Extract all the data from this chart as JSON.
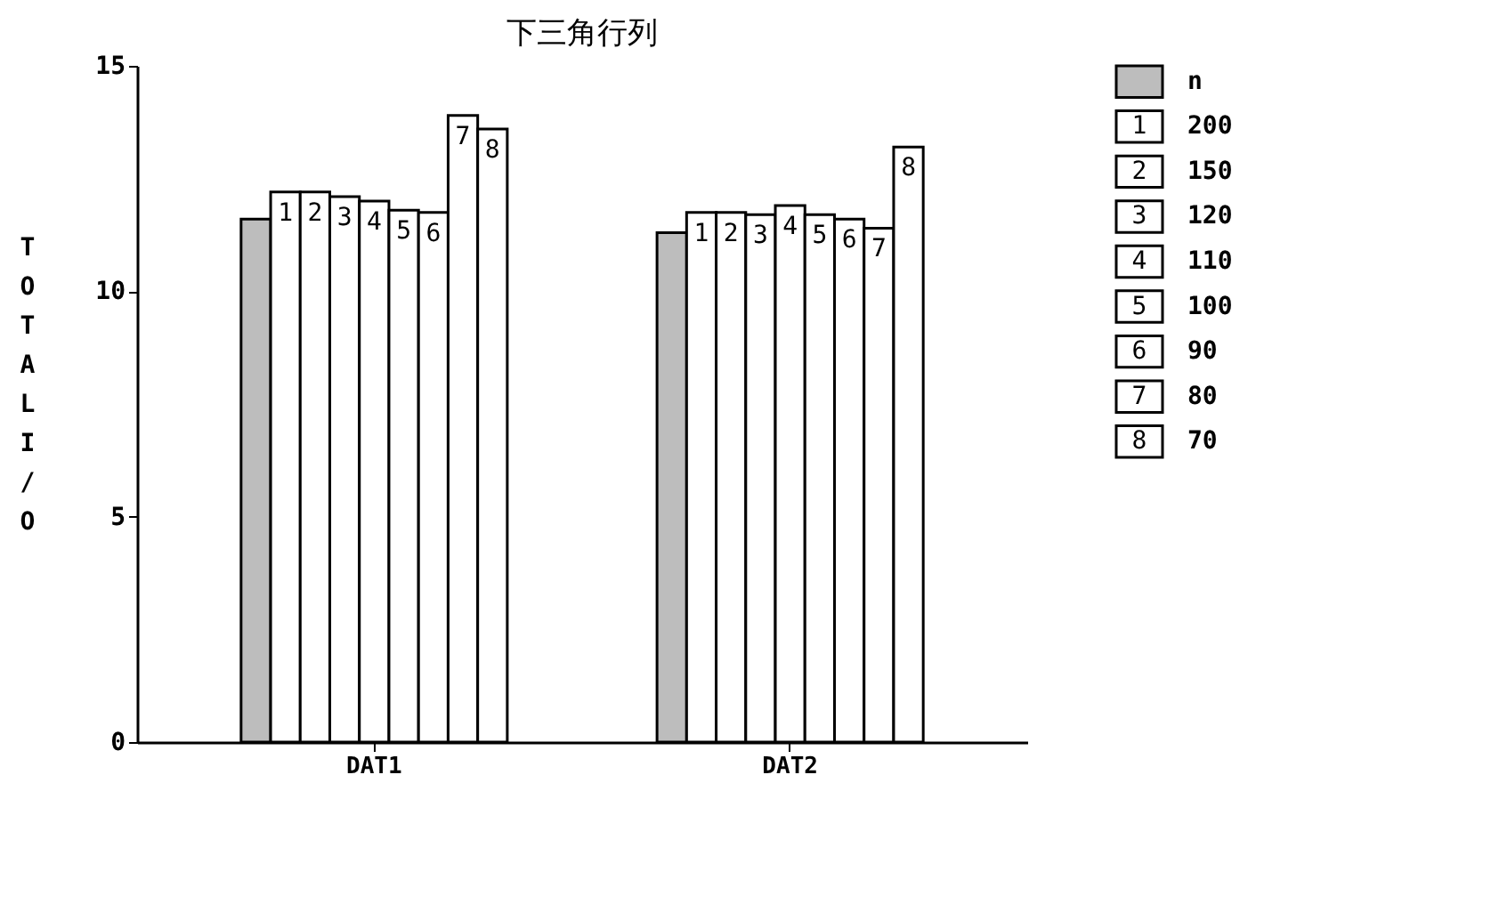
{
  "chart_data": {
    "type": "bar",
    "title": "下三角行列",
    "ylabel": "TOTAL I/O",
    "categories": [
      "DAT1",
      "DAT2"
    ],
    "series": [
      {
        "name": "n",
        "color": "#bdbdbd",
        "values": [
          11.6,
          11.3
        ]
      },
      {
        "name": "200",
        "color": "#ffffff",
        "values": [
          12.2,
          11.75
        ]
      },
      {
        "name": "150",
        "color": "#ffffff",
        "values": [
          12.2,
          11.75
        ]
      },
      {
        "name": "120",
        "color": "#ffffff",
        "values": [
          12.1,
          11.7
        ]
      },
      {
        "name": "110",
        "color": "#ffffff",
        "values": [
          12.0,
          11.9
        ]
      },
      {
        "name": "100",
        "color": "#ffffff",
        "values": [
          11.8,
          11.7
        ]
      },
      {
        "name": "90",
        "color": "#ffffff",
        "values": [
          11.75,
          11.6
        ]
      },
      {
        "name": "80",
        "color": "#ffffff",
        "values": [
          13.9,
          11.4
        ]
      },
      {
        "name": "70",
        "color": "#ffffff",
        "values": [
          13.6,
          13.2
        ]
      }
    ],
    "ylim": [
      0,
      15
    ],
    "yticks": [
      0,
      5,
      10,
      15
    ],
    "grid": false,
    "legend": "top right",
    "annotations": [
      "1",
      "2",
      "3",
      "4",
      "5",
      "6",
      "7",
      "8",
      "1",
      "2",
      "3",
      "4",
      "5",
      "6",
      "7",
      "8"
    ]
  }
}
